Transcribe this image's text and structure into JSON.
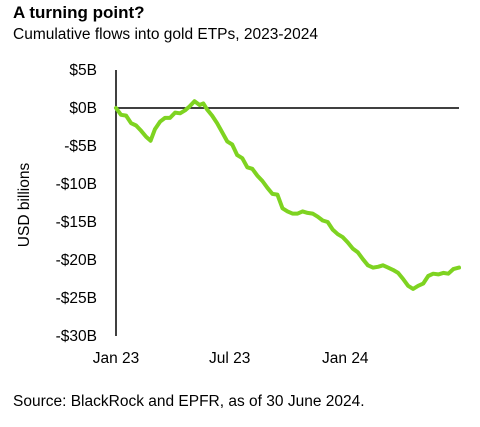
{
  "title": "A turning point?",
  "subtitle": "Cumulative flows into gold ETPs, 2023-2024",
  "source": "Source: BlackRock and EPFR, as of 30 June 2024.",
  "colors": {
    "line": "#7ED321",
    "axis": "#000000",
    "text": "#000000"
  },
  "chart_data": {
    "type": "line",
    "title": "A turning point?",
    "subtitle": "Cumulative flows into gold ETPs, 2023-2024",
    "ylabel": "USD billions",
    "xlabel": "",
    "ylim": [
      -30,
      5
    ],
    "y_ticks": [
      5,
      0,
      -5,
      -10,
      -15,
      -20,
      -25,
      -30
    ],
    "y_tick_labels": [
      "$5B",
      "$0B",
      "-$5B",
      "-$10B",
      "-$15B",
      "-$20B",
      "-$25B",
      "-$30B"
    ],
    "x_ticks": [
      "2023-01-01",
      "2023-07-01",
      "2024-01-01"
    ],
    "x_tick_labels": [
      "Jan 23",
      "Jul 23",
      "Jan 24"
    ],
    "x_range": [
      "2023-01-01",
      "2024-06-30"
    ],
    "grid": false,
    "legend": "none",
    "series": [
      {
        "points": [
          [
            "2023-01-01",
            0.0
          ],
          [
            "2023-01-09",
            -0.9
          ],
          [
            "2023-01-17",
            -1.0
          ],
          [
            "2023-01-25",
            -2.0
          ],
          [
            "2023-02-02",
            -2.3
          ],
          [
            "2023-02-10",
            -3.0
          ],
          [
            "2023-02-18",
            -3.8
          ],
          [
            "2023-02-25",
            -4.3
          ],
          [
            "2023-03-04",
            -2.8
          ],
          [
            "2023-03-12",
            -1.8
          ],
          [
            "2023-03-20",
            -1.3
          ],
          [
            "2023-03-28",
            -1.3
          ],
          [
            "2023-04-05",
            -0.6
          ],
          [
            "2023-04-13",
            -0.7
          ],
          [
            "2023-04-21",
            -0.3
          ],
          [
            "2023-04-28",
            0.2
          ],
          [
            "2023-05-06",
            0.9
          ],
          [
            "2023-05-14",
            0.4
          ],
          [
            "2023-05-20",
            0.6
          ],
          [
            "2023-05-26",
            -0.2
          ],
          [
            "2023-06-03",
            -1.0
          ],
          [
            "2023-06-11",
            -2.0
          ],
          [
            "2023-06-19",
            -3.2
          ],
          [
            "2023-06-27",
            -4.4
          ],
          [
            "2023-07-05",
            -4.8
          ],
          [
            "2023-07-13",
            -6.2
          ],
          [
            "2023-07-21",
            -6.6
          ],
          [
            "2023-07-29",
            -7.8
          ],
          [
            "2023-08-06",
            -8.0
          ],
          [
            "2023-08-14",
            -8.9
          ],
          [
            "2023-08-22",
            -9.6
          ],
          [
            "2023-08-30",
            -10.5
          ],
          [
            "2023-09-07",
            -11.3
          ],
          [
            "2023-09-15",
            -11.4
          ],
          [
            "2023-09-23",
            -13.2
          ],
          [
            "2023-10-01",
            -13.6
          ],
          [
            "2023-10-09",
            -13.9
          ],
          [
            "2023-10-17",
            -13.9
          ],
          [
            "2023-10-25",
            -13.6
          ],
          [
            "2023-11-02",
            -13.8
          ],
          [
            "2023-11-10",
            -13.9
          ],
          [
            "2023-11-18",
            -14.3
          ],
          [
            "2023-11-26",
            -14.8
          ],
          [
            "2023-12-04",
            -15.0
          ],
          [
            "2023-12-12",
            -16.0
          ],
          [
            "2023-12-20",
            -16.6
          ],
          [
            "2023-12-28",
            -17.0
          ],
          [
            "2024-01-05",
            -17.7
          ],
          [
            "2024-01-13",
            -18.5
          ],
          [
            "2024-01-21",
            -19.0
          ],
          [
            "2024-01-29",
            -19.9
          ],
          [
            "2024-02-06",
            -20.7
          ],
          [
            "2024-02-14",
            -21.0
          ],
          [
            "2024-02-22",
            -20.9
          ],
          [
            "2024-03-01",
            -20.7
          ],
          [
            "2024-03-09",
            -21.0
          ],
          [
            "2024-03-17",
            -21.3
          ],
          [
            "2024-03-25",
            -21.7
          ],
          [
            "2024-04-02",
            -22.5
          ],
          [
            "2024-04-10",
            -23.4
          ],
          [
            "2024-04-18",
            -23.8
          ],
          [
            "2024-04-26",
            -23.4
          ],
          [
            "2024-05-04",
            -23.1
          ],
          [
            "2024-05-12",
            -22.1
          ],
          [
            "2024-05-20",
            -21.8
          ],
          [
            "2024-05-28",
            -21.9
          ],
          [
            "2024-06-05",
            -21.7
          ],
          [
            "2024-06-13",
            -21.8
          ],
          [
            "2024-06-21",
            -21.2
          ],
          [
            "2024-06-30",
            -21.0
          ]
        ]
      }
    ]
  }
}
